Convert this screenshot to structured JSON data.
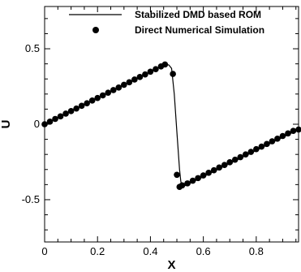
{
  "chart_data": {
    "type": "line",
    "xlabel": "X",
    "ylabel": "U",
    "xlim": [
      0,
      0.96
    ],
    "ylim": [
      -0.78,
      0.78
    ],
    "x_ticks": [
      0,
      0.2,
      0.4,
      0.6,
      0.8
    ],
    "y_ticks": [
      -0.5,
      0,
      0.5
    ],
    "x_tick_labels": [
      "0",
      "0.2",
      "0.4",
      "0.6",
      "0.8"
    ],
    "y_tick_labels": [
      "-0.5",
      "0",
      "0.5"
    ],
    "grid": false,
    "legend_position": "top-right",
    "series": [
      {
        "name": "Stabilized DMD based ROM",
        "style": "line",
        "color": "#000000",
        "points": [
          [
            0,
            0
          ],
          [
            0.05,
            0.043
          ],
          [
            0.1,
            0.087
          ],
          [
            0.15,
            0.13
          ],
          [
            0.2,
            0.174
          ],
          [
            0.25,
            0.217
          ],
          [
            0.3,
            0.261
          ],
          [
            0.35,
            0.304
          ],
          [
            0.4,
            0.348
          ],
          [
            0.43,
            0.374
          ],
          [
            0.45,
            0.391
          ],
          [
            0.46,
            0.398
          ],
          [
            0.47,
            0.392
          ],
          [
            0.48,
            0.37
          ],
          [
            0.49,
            0.2
          ],
          [
            0.5,
            -0.05
          ],
          [
            0.51,
            -0.3
          ],
          [
            0.515,
            -0.38
          ],
          [
            0.52,
            -0.405
          ],
          [
            0.53,
            -0.408
          ],
          [
            0.55,
            -0.391
          ],
          [
            0.6,
            -0.348
          ],
          [
            0.65,
            -0.304
          ],
          [
            0.7,
            -0.261
          ],
          [
            0.75,
            -0.217
          ],
          [
            0.8,
            -0.174
          ],
          [
            0.85,
            -0.13
          ],
          [
            0.9,
            -0.087
          ],
          [
            0.94,
            -0.052
          ],
          [
            0.96,
            -0.035
          ]
        ]
      },
      {
        "name": "Direct Numerical Simulation",
        "style": "markers",
        "color": "#000000",
        "points": [
          [
            0,
            0
          ],
          [
            0.02,
            0.017
          ],
          [
            0.04,
            0.035
          ],
          [
            0.06,
            0.052
          ],
          [
            0.08,
            0.07
          ],
          [
            0.1,
            0.087
          ],
          [
            0.12,
            0.104
          ],
          [
            0.14,
            0.122
          ],
          [
            0.16,
            0.139
          ],
          [
            0.18,
            0.157
          ],
          [
            0.2,
            0.174
          ],
          [
            0.22,
            0.191
          ],
          [
            0.24,
            0.209
          ],
          [
            0.26,
            0.226
          ],
          [
            0.28,
            0.243
          ],
          [
            0.3,
            0.261
          ],
          [
            0.32,
            0.278
          ],
          [
            0.34,
            0.296
          ],
          [
            0.36,
            0.313
          ],
          [
            0.38,
            0.33
          ],
          [
            0.4,
            0.348
          ],
          [
            0.42,
            0.365
          ],
          [
            0.44,
            0.383
          ],
          [
            0.455,
            0.396
          ],
          [
            0.485,
            0.333
          ],
          [
            0.5,
            -0.335
          ],
          [
            0.51,
            -0.415
          ],
          [
            0.52,
            -0.405
          ],
          [
            0.54,
            -0.392
          ],
          [
            0.56,
            -0.374
          ],
          [
            0.58,
            -0.357
          ],
          [
            0.6,
            -0.339
          ],
          [
            0.62,
            -0.322
          ],
          [
            0.64,
            -0.305
          ],
          [
            0.66,
            -0.287
          ],
          [
            0.68,
            -0.27
          ],
          [
            0.7,
            -0.252
          ],
          [
            0.72,
            -0.235
          ],
          [
            0.74,
            -0.218
          ],
          [
            0.76,
            -0.2
          ],
          [
            0.78,
            -0.183
          ],
          [
            0.8,
            -0.165
          ],
          [
            0.82,
            -0.148
          ],
          [
            0.84,
            -0.131
          ],
          [
            0.86,
            -0.113
          ],
          [
            0.88,
            -0.096
          ],
          [
            0.9,
            -0.078
          ],
          [
            0.92,
            -0.061
          ],
          [
            0.94,
            -0.044
          ],
          [
            0.96,
            -0.035
          ]
        ]
      }
    ]
  }
}
